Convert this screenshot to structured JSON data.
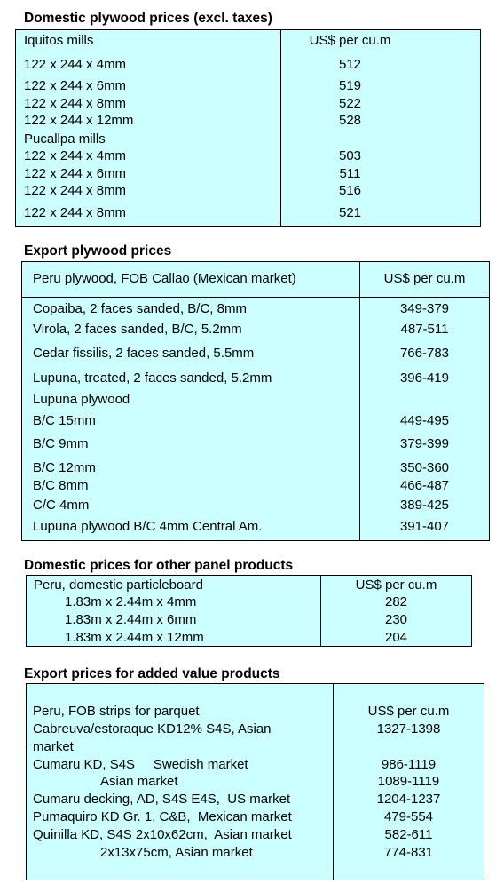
{
  "sections": [
    {
      "title": "Domestic plywood prices (excl. taxes)",
      "header": {
        "label": "Iquitos mills",
        "unit": "US$ per cu.m"
      },
      "rows": [
        {
          "label": "122 x 244 x 4mm",
          "value": "512"
        },
        {
          "label": "122 x 244 x 6mm",
          "value": "519"
        },
        {
          "label": "122 x 244 x 8mm",
          "value": "522"
        },
        {
          "label": "122 x 244 x 12mm",
          "value": "528"
        },
        {
          "label": "Pucallpa mills",
          "value": ""
        },
        {
          "label": "122 x 244 x 4mm",
          "value": "503"
        },
        {
          "label": "122 x 244 x 6mm",
          "value": "511"
        },
        {
          "label": "122 x 244 x 8mm",
          "value": "516"
        },
        {
          "label": "122 x 244 x 8mm",
          "value": "521"
        }
      ]
    },
    {
      "title": "Export plywood prices",
      "header": {
        "label": "Peru plywood, FOB Callao (Mexican market)",
        "unit": "US$ per cu.m"
      },
      "rows": [
        {
          "label": "Copaiba, 2 faces sanded, B/C, 8mm",
          "value": "349-379"
        },
        {
          "label": "Virola, 2 faces sanded, B/C, 5.2mm",
          "value": "487-511"
        },
        {
          "label": "Cedar fissilis, 2 faces sanded, 5.5mm",
          "value": "766-783"
        },
        {
          "label": "Lupuna, treated, 2 faces sanded, 5.2mm",
          "value": "396-419"
        },
        {
          "label": "Lupuna plywood",
          "value": ""
        },
        {
          "label": "B/C 15mm",
          "value": "449-495"
        },
        {
          "label": "B/C 9mm",
          "value": "379-399"
        },
        {
          "label": "B/C 12mm",
          "value": "350-360"
        },
        {
          "label": "B/C 8mm",
          "value": "466-487"
        },
        {
          "label": "C/C 4mm",
          "value": "389-425"
        },
        {
          "label": "Lupuna plywood B/C 4mm Central Am.",
          "value": "391-407"
        }
      ]
    },
    {
      "title": "Domestic prices for other panel products",
      "header": {
        "label": "Peru, domestic particleboard",
        "unit": "US$ per cu.m"
      },
      "rows": [
        {
          "label": "1.83m x 2.44m x 4mm",
          "value": "282"
        },
        {
          "label": "1.83m x 2.44m x 6mm",
          "value": "230"
        },
        {
          "label": "1.83m x 2.44m x 12mm",
          "value": "204"
        }
      ]
    },
    {
      "title": "Export prices for added value products",
      "header": {
        "label": "Peru, FOB strips for parquet",
        "unit": "US$ per cu.m"
      },
      "rows": [
        {
          "label": "Cabreuva/estoraque KD12% S4S, Asian",
          "value": "1327-1398"
        },
        {
          "label": "market",
          "value": ""
        },
        {
          "label": "Cumaru KD, S4S     Swedish market",
          "value": "986-1119"
        },
        {
          "label": "Asian market",
          "value": "1089-1119"
        },
        {
          "label": "Cumaru decking, AD, S4S E4S,  US market",
          "value": "1204-1237"
        },
        {
          "label": "Pumaquiro KD Gr. 1, C&B,  Mexican market",
          "value": "479-554"
        },
        {
          "label": "Quinilla KD, S4S 2x10x62cm,  Asian market",
          "value": "582-611"
        },
        {
          "label": "2x13x75cm, Asian market",
          "value": "774-831"
        }
      ]
    }
  ]
}
